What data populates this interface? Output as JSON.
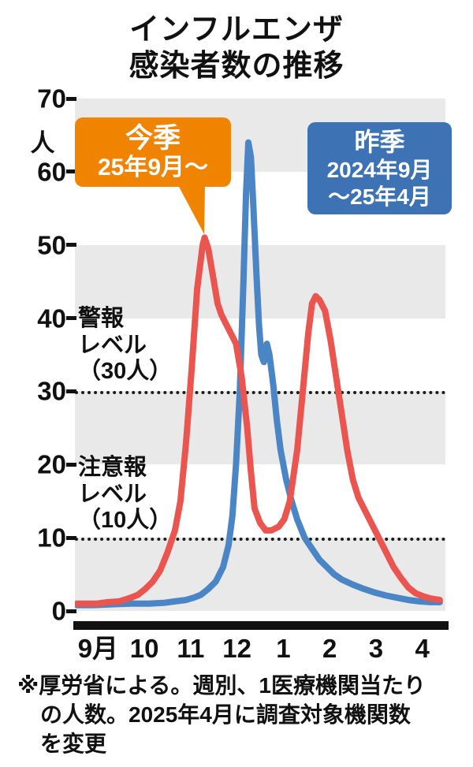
{
  "title": {
    "line1": "インフルエンザ",
    "line2": "感染者数の推移"
  },
  "y_axis": {
    "unit": "人",
    "ticks": [
      70,
      60,
      50,
      40,
      30,
      20,
      10,
      0
    ]
  },
  "x_axis": {
    "labels": [
      "9月",
      "10",
      "11",
      "12",
      "1",
      "2",
      "3",
      "4"
    ]
  },
  "reference_lines": [
    {
      "value": 30,
      "label_lines": [
        "警報",
        "レベル",
        "（30人）"
      ]
    },
    {
      "value": 10,
      "label_lines": [
        "注意報",
        "レベル",
        "（10人）"
      ]
    }
  ],
  "callouts": {
    "this_season": {
      "color": "#f08300",
      "lines": [
        "今季",
        "25年9月〜"
      ]
    },
    "last_season": {
      "color": "#3d72b5",
      "lines": [
        "昨季",
        "2024年9月",
        "〜25年4月"
      ]
    }
  },
  "footnote": {
    "lines": [
      "※厚労省による。週別、1医療機関当たり",
      "の人数。2025年4月に調査対象機関数",
      "を変更"
    ]
  },
  "chart_data": {
    "type": "line",
    "title": "インフルエンザ感染者数の推移",
    "ylabel": "人",
    "ylim": [
      0,
      70
    ],
    "x_axis_note": "x = fraction of Sep-Apr span (0 = start of September, 1 = end of April)",
    "x_months": [
      "9月",
      "10月",
      "11月",
      "12月",
      "1月",
      "2月",
      "3月",
      "4月"
    ],
    "grid": "horizontal alternating shaded bands every 10 units",
    "band_colors": {
      "shaded": "#e9e9e9",
      "plain": "#ffffff"
    },
    "thresholds": [
      {
        "label": "警報レベル",
        "value": 30
      },
      {
        "label": "注意報レベル",
        "value": 10
      }
    ],
    "series": [
      {
        "id": "last-season",
        "name": "昨季 2024年9月〜25年4月",
        "color": "#4a85c5",
        "peak_value": 64,
        "points": [
          [
            0.005,
            0.8
          ],
          [
            0.05,
            0.8
          ],
          [
            0.1,
            0.9
          ],
          [
            0.15,
            1
          ],
          [
            0.2,
            1
          ],
          [
            0.24,
            1.1
          ],
          [
            0.27,
            1.3
          ],
          [
            0.3,
            1.5
          ],
          [
            0.32,
            1.8
          ],
          [
            0.34,
            2.2
          ],
          [
            0.36,
            3
          ],
          [
            0.38,
            4
          ],
          [
            0.4,
            6
          ],
          [
            0.415,
            9
          ],
          [
            0.425,
            13
          ],
          [
            0.435,
            20
          ],
          [
            0.445,
            30
          ],
          [
            0.455,
            45
          ],
          [
            0.462,
            57
          ],
          [
            0.468,
            64
          ],
          [
            0.475,
            62
          ],
          [
            0.482,
            55
          ],
          [
            0.49,
            46
          ],
          [
            0.497,
            39
          ],
          [
            0.503,
            35
          ],
          [
            0.51,
            34
          ],
          [
            0.518,
            36.5
          ],
          [
            0.525,
            35
          ],
          [
            0.535,
            31
          ],
          [
            0.545,
            26
          ],
          [
            0.555,
            22
          ],
          [
            0.57,
            18
          ],
          [
            0.585,
            15
          ],
          [
            0.6,
            12.5
          ],
          [
            0.62,
            10
          ],
          [
            0.64,
            8.5
          ],
          [
            0.66,
            7
          ],
          [
            0.68,
            6
          ],
          [
            0.7,
            5
          ],
          [
            0.72,
            4.3
          ],
          [
            0.75,
            3.6
          ],
          [
            0.78,
            3
          ],
          [
            0.81,
            2.5
          ],
          [
            0.84,
            2.1
          ],
          [
            0.87,
            1.8
          ],
          [
            0.9,
            1.5
          ],
          [
            0.93,
            1.3
          ],
          [
            0.96,
            1.2
          ],
          [
            0.985,
            1.2
          ]
        ]
      },
      {
        "id": "this-season",
        "name": "今季 25年9月〜",
        "color": "#ea5550",
        "peak_value": 51,
        "points": [
          [
            0.005,
            1
          ],
          [
            0.03,
            1
          ],
          [
            0.06,
            1
          ],
          [
            0.09,
            1.2
          ],
          [
            0.12,
            1.3
          ],
          [
            0.15,
            1.8
          ],
          [
            0.17,
            2.2
          ],
          [
            0.19,
            3
          ],
          [
            0.21,
            4
          ],
          [
            0.23,
            5.5
          ],
          [
            0.25,
            8
          ],
          [
            0.27,
            11
          ],
          [
            0.285,
            15
          ],
          [
            0.3,
            23
          ],
          [
            0.315,
            33
          ],
          [
            0.33,
            44
          ],
          [
            0.345,
            50
          ],
          [
            0.35,
            51
          ],
          [
            0.36,
            49.5
          ],
          [
            0.375,
            45
          ],
          [
            0.385,
            42
          ],
          [
            0.395,
            40.5
          ],
          [
            0.41,
            39
          ],
          [
            0.425,
            37.5
          ],
          [
            0.435,
            36.5
          ],
          [
            0.45,
            32
          ],
          [
            0.465,
            25
          ],
          [
            0.475,
            19
          ],
          [
            0.485,
            14
          ],
          [
            0.5,
            12
          ],
          [
            0.515,
            11
          ],
          [
            0.53,
            11
          ],
          [
            0.55,
            11.5
          ],
          [
            0.565,
            12.5
          ],
          [
            0.58,
            15
          ],
          [
            0.6,
            22
          ],
          [
            0.615,
            30
          ],
          [
            0.63,
            38
          ],
          [
            0.64,
            42
          ],
          [
            0.65,
            43
          ],
          [
            0.66,
            42.5
          ],
          [
            0.675,
            41
          ],
          [
            0.69,
            37
          ],
          [
            0.705,
            32
          ],
          [
            0.72,
            27
          ],
          [
            0.735,
            22
          ],
          [
            0.75,
            18
          ],
          [
            0.765,
            15.5
          ],
          [
            0.78,
            14
          ],
          [
            0.8,
            12
          ],
          [
            0.82,
            10
          ],
          [
            0.84,
            8
          ],
          [
            0.86,
            6
          ],
          [
            0.88,
            4.5
          ],
          [
            0.9,
            3.2
          ],
          [
            0.92,
            2.4
          ],
          [
            0.94,
            2
          ],
          [
            0.96,
            1.7
          ],
          [
            0.985,
            1.5
          ]
        ]
      }
    ]
  }
}
